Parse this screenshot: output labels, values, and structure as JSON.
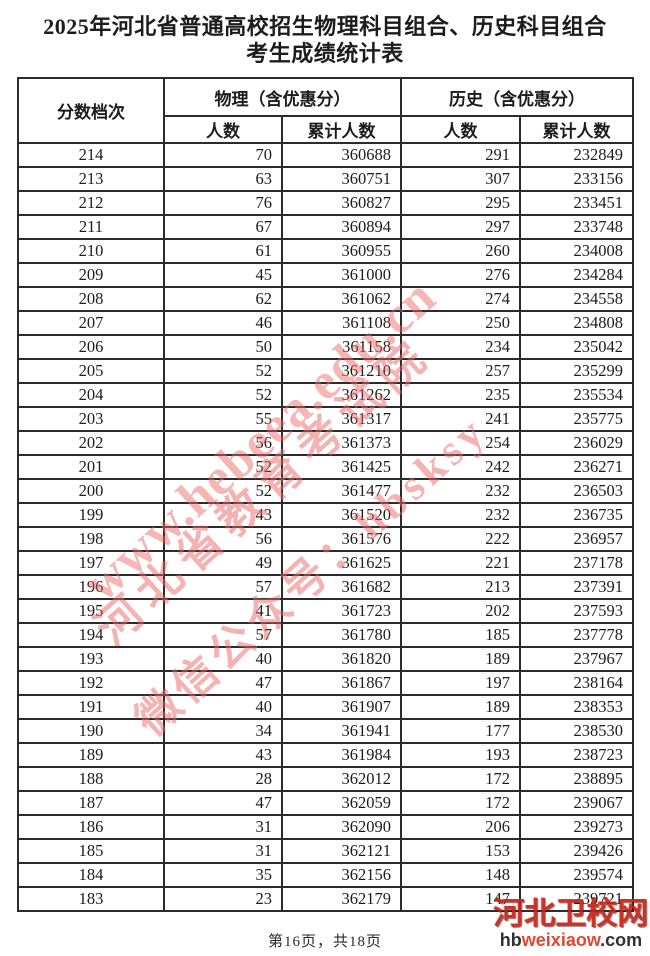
{
  "page": {
    "title_line1": "2025年河北省普通高校招生物理科目组合、历史科目组合",
    "title_line2": "考生成绩统计表",
    "footer_page_text": "第16页，共18页"
  },
  "table": {
    "col_score_label": "分数档次",
    "col_physics_group_label": "物理（含优惠分）",
    "col_history_group_label": "历史（含优惠分）",
    "col_count_label": "人数",
    "col_cumulative_label": "累计人数",
    "rows": [
      [
        "214",
        "70",
        "360688",
        "291",
        "232849"
      ],
      [
        "213",
        "63",
        "360751",
        "307",
        "233156"
      ],
      [
        "212",
        "76",
        "360827",
        "295",
        "233451"
      ],
      [
        "211",
        "67",
        "360894",
        "297",
        "233748"
      ],
      [
        "210",
        "61",
        "360955",
        "260",
        "234008"
      ],
      [
        "209",
        "45",
        "361000",
        "276",
        "234284"
      ],
      [
        "208",
        "62",
        "361062",
        "274",
        "234558"
      ],
      [
        "207",
        "46",
        "361108",
        "250",
        "234808"
      ],
      [
        "206",
        "50",
        "361158",
        "234",
        "235042"
      ],
      [
        "205",
        "52",
        "361210",
        "257",
        "235299"
      ],
      [
        "204",
        "52",
        "361262",
        "235",
        "235534"
      ],
      [
        "203",
        "55",
        "361317",
        "241",
        "235775"
      ],
      [
        "202",
        "56",
        "361373",
        "254",
        "236029"
      ],
      [
        "201",
        "52",
        "361425",
        "242",
        "236271"
      ],
      [
        "200",
        "52",
        "361477",
        "232",
        "236503"
      ],
      [
        "199",
        "43",
        "361520",
        "232",
        "236735"
      ],
      [
        "198",
        "56",
        "361576",
        "222",
        "236957"
      ],
      [
        "197",
        "49",
        "361625",
        "221",
        "237178"
      ],
      [
        "196",
        "57",
        "361682",
        "213",
        "237391"
      ],
      [
        "195",
        "41",
        "361723",
        "202",
        "237593"
      ],
      [
        "194",
        "57",
        "361780",
        "185",
        "237778"
      ],
      [
        "193",
        "40",
        "361820",
        "189",
        "237967"
      ],
      [
        "192",
        "47",
        "361867",
        "197",
        "238164"
      ],
      [
        "191",
        "40",
        "361907",
        "189",
        "238353"
      ],
      [
        "190",
        "34",
        "361941",
        "177",
        "238530"
      ],
      [
        "189",
        "43",
        "361984",
        "193",
        "238723"
      ],
      [
        "188",
        "28",
        "362012",
        "172",
        "238895"
      ],
      [
        "187",
        "47",
        "362059",
        "172",
        "239067"
      ],
      [
        "186",
        "31",
        "362090",
        "206",
        "239273"
      ],
      [
        "185",
        "31",
        "362121",
        "153",
        "239426"
      ],
      [
        "184",
        "35",
        "362156",
        "148",
        "239574"
      ],
      [
        "183",
        "23",
        "362179",
        "147",
        "239721"
      ]
    ]
  },
  "watermark": {
    "line1": "河北省教育考试院",
    "line2": "www.hebeea.edu.cn",
    "line3": "微信公众号：hbsksy",
    "color": "#ec6666"
  },
  "logo": {
    "site_name": "河北卫校网",
    "domain_prefix": "hb",
    "domain_highlight": "weixiaow",
    "domain_suffix": ".com",
    "accent_color": "#e03a22"
  }
}
